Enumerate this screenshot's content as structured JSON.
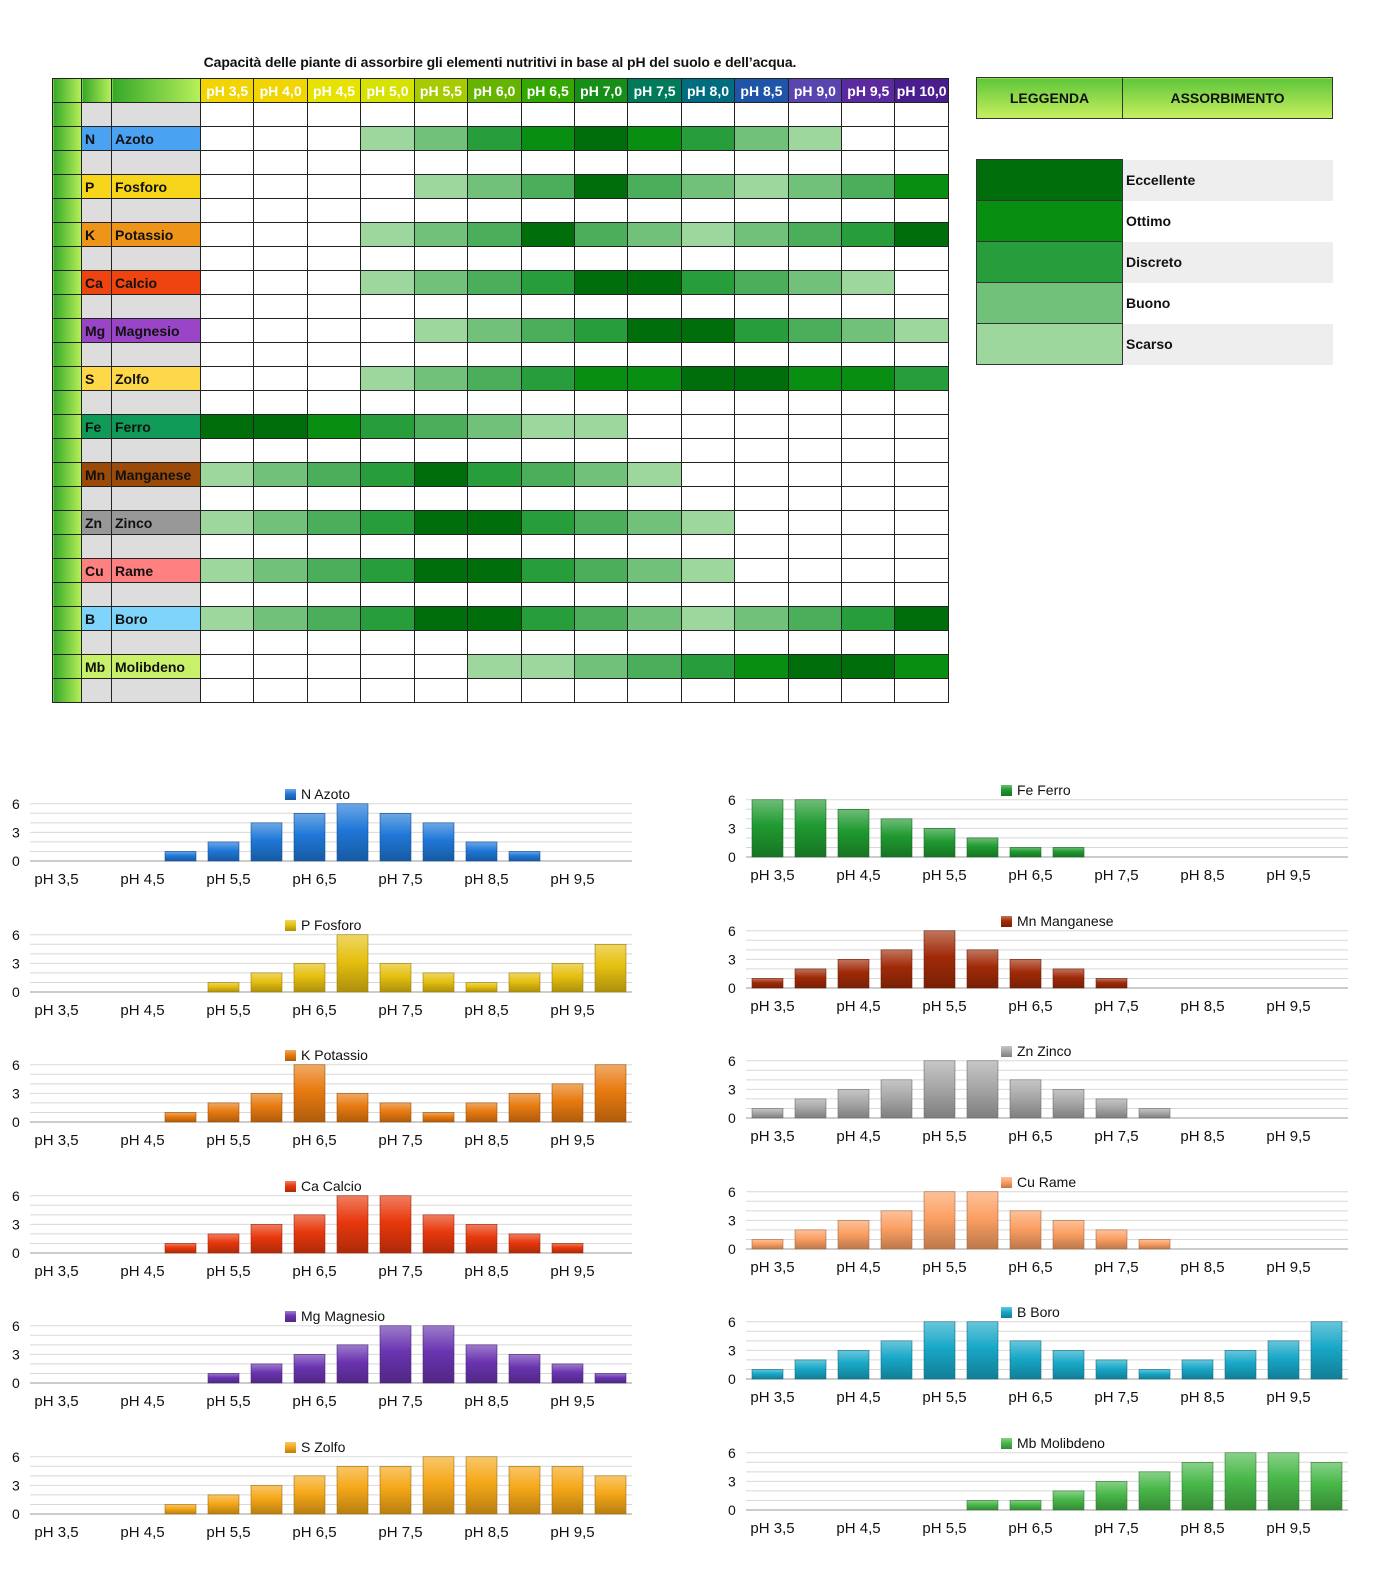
{
  "title": "Capacità delle piante di assorbire gli elementi nutritivi in base al pH del suolo e dell’acqua.",
  "ph_headers": [
    "pH 3,5",
    "pH 4,0",
    "pH 4,5",
    "pH 5,0",
    "pH 5,5",
    "pH 6,0",
    "pH 6,5",
    "pH 7,0",
    "pH 7,5",
    "pH 8,0",
    "pH 8,5",
    "pH 9,0",
    "pH 9,5",
    "pH 10,0"
  ],
  "ph_header_colors": [
    "#f2d400",
    "#f2d400",
    "#e7e200",
    "#d6e200",
    "#a6cc00",
    "#66b400",
    "#34a800",
    "#168f18",
    "#007a5a",
    "#006c80",
    "#1f55a8",
    "#5a45b0",
    "#5c2aa0",
    "#4a1d8e"
  ],
  "level_colors": {
    "0": "#ffffff",
    "1": "#9dd79d",
    "2": "#71c17a",
    "3": "#4aae5a",
    "4": "#279d3c",
    "5": "#088e10",
    "6": "#006e0b"
  },
  "legend": {
    "header_left": "LEGGENDA",
    "header_right": "ASSORBIMENTO",
    "items": [
      {
        "label": "Eccellente",
        "level": 6
      },
      {
        "label": "Ottimo",
        "level": 5
      },
      {
        "label": "Discreto",
        "level": 4
      },
      {
        "label": "Buono",
        "level": 2
      },
      {
        "label": "Scarso",
        "level": 1
      }
    ]
  },
  "elements": [
    {
      "sym": "N",
      "name": "Azoto",
      "color": "#4aa2f2",
      "values": [
        0,
        0,
        0,
        1,
        2,
        4,
        5,
        6,
        5,
        4,
        2,
        1,
        0,
        0
      ]
    },
    {
      "sym": "P",
      "name": "Fosforo",
      "color": "#f7d51b",
      "values": [
        0,
        0,
        0,
        0,
        1,
        2,
        3,
        6,
        3,
        2,
        1,
        2,
        3,
        5
      ]
    },
    {
      "sym": "K",
      "name": "Potassio",
      "color": "#ee9418",
      "values": [
        0,
        0,
        0,
        1,
        2,
        3,
        6,
        3,
        2,
        1,
        2,
        3,
        4,
        6
      ]
    },
    {
      "sym": "Ca",
      "name": "Calcio",
      "color": "#ef4410",
      "values": [
        0,
        0,
        0,
        1,
        2,
        3,
        4,
        6,
        6,
        4,
        3,
        2,
        1,
        0
      ]
    },
    {
      "sym": "Mg",
      "name": "Magnesio",
      "color": "#9a44c8",
      "values": [
        0,
        0,
        0,
        0,
        1,
        2,
        3,
        4,
        6,
        6,
        4,
        3,
        2,
        1
      ]
    },
    {
      "sym": "S",
      "name": "Zolfo",
      "color": "#ffd84a",
      "values": [
        0,
        0,
        0,
        1,
        2,
        3,
        4,
        5,
        5,
        6,
        6,
        5,
        5,
        4
      ]
    },
    {
      "sym": "Fe",
      "name": "Ferro",
      "color": "#0f9a58",
      "values": [
        6,
        6,
        5,
        4,
        3,
        2,
        1,
        1,
        0,
        0,
        0,
        0,
        0,
        0
      ]
    },
    {
      "sym": "Mn",
      "name": "Manganese",
      "color": "#9b4a08",
      "values": [
        1,
        2,
        3,
        4,
        6,
        4,
        3,
        2,
        1,
        0,
        0,
        0,
        0,
        0
      ]
    },
    {
      "sym": "Zn",
      "name": "Zinco",
      "color": "#989898",
      "values": [
        1,
        2,
        3,
        4,
        6,
        6,
        4,
        3,
        2,
        1,
        0,
        0,
        0,
        0
      ]
    },
    {
      "sym": "Cu",
      "name": "Rame",
      "color": "#ff8080",
      "values": [
        1,
        2,
        3,
        4,
        6,
        6,
        4,
        3,
        2,
        1,
        0,
        0,
        0,
        0
      ]
    },
    {
      "sym": "B",
      "name": "Boro",
      "color": "#7fd4fb",
      "values": [
        1,
        2,
        3,
        4,
        6,
        6,
        4,
        3,
        2,
        1,
        2,
        3,
        4,
        6
      ]
    },
    {
      "sym": "Mb",
      "name": "Molibdeno",
      "color": "#c8f068",
      "values": [
        0,
        0,
        0,
        0,
        0,
        1,
        1,
        2,
        3,
        4,
        5,
        6,
        6,
        5
      ]
    }
  ],
  "chart_data": [
    {
      "type": "bar",
      "series": [
        {
          "name": "N Azoto",
          "values": [
            0,
            0,
            0,
            1,
            2,
            4,
            5,
            6,
            5,
            4,
            2,
            1,
            0,
            0
          ]
        }
      ],
      "categories": [
        "pH 3,5",
        "pH 4,0",
        "pH 4,5",
        "pH 5,0",
        "pH 5,5",
        "pH 6,0",
        "pH 6,5",
        "pH 7,0",
        "pH 7,5",
        "pH 8,0",
        "pH 8,5",
        "pH 9,0",
        "pH 9,5",
        "pH 10,0"
      ],
      "tick_labels": [
        "pH 3,5",
        "pH 4,5",
        "pH 5,5",
        "pH 6,5",
        "pH 7,5",
        "pH 8,5",
        "pH 9,5"
      ],
      "yticks": [
        0,
        3,
        6
      ],
      "ylim": [
        0,
        6.5
      ],
      "color": "#1f78d8",
      "legend_placement": "top-center",
      "grid": true
    },
    {
      "type": "bar",
      "series": [
        {
          "name": "P Fosforo",
          "values": [
            0,
            0,
            0,
            0,
            1,
            2,
            3,
            6,
            3,
            2,
            1,
            2,
            3,
            5
          ]
        }
      ],
      "categories": [
        "pH 3,5",
        "pH 4,0",
        "pH 4,5",
        "pH 5,0",
        "pH 5,5",
        "pH 6,0",
        "pH 6,5",
        "pH 7,0",
        "pH 7,5",
        "pH 8,0",
        "pH 8,5",
        "pH 9,0",
        "pH 9,5",
        "pH 10,0"
      ],
      "tick_labels": [
        "pH 3,5",
        "pH 4,5",
        "pH 5,5",
        "pH 6,5",
        "pH 7,5",
        "pH 8,5",
        "pH 9,5"
      ],
      "yticks": [
        0,
        3,
        6
      ],
      "ylim": [
        0,
        6.5
      ],
      "color": "#e6c010",
      "legend_placement": "top-center",
      "grid": true
    },
    {
      "type": "bar",
      "series": [
        {
          "name": "K Potassio",
          "values": [
            0,
            0,
            0,
            1,
            2,
            3,
            6,
            3,
            2,
            1,
            2,
            3,
            4,
            6
          ]
        }
      ],
      "categories": [
        "pH 3,5",
        "pH 4,0",
        "pH 4,5",
        "pH 5,0",
        "pH 5,5",
        "pH 6,0",
        "pH 6,5",
        "pH 7,0",
        "pH 7,5",
        "pH 8,0",
        "pH 8,5",
        "pH 9,0",
        "pH 9,5",
        "pH 10,0"
      ],
      "tick_labels": [
        "pH 3,5",
        "pH 4,5",
        "pH 5,5",
        "pH 6,5",
        "pH 7,5",
        "pH 8,5",
        "pH 9,5"
      ],
      "yticks": [
        0,
        3,
        6
      ],
      "ylim": [
        0,
        6.5
      ],
      "color": "#e87a10",
      "legend_placement": "top-center",
      "grid": true
    },
    {
      "type": "bar",
      "series": [
        {
          "name": "Ca Calcio",
          "values": [
            0,
            0,
            0,
            1,
            2,
            3,
            4,
            6,
            6,
            4,
            3,
            2,
            1,
            0
          ]
        }
      ],
      "categories": [
        "pH 3,5",
        "pH 4,0",
        "pH 4,5",
        "pH 5,0",
        "pH 5,5",
        "pH 6,0",
        "pH 6,5",
        "pH 7,0",
        "pH 7,5",
        "pH 8,0",
        "pH 8,5",
        "pH 9,0",
        "pH 9,5",
        "pH 10,0"
      ],
      "tick_labels": [
        "pH 3,5",
        "pH 4,5",
        "pH 5,5",
        "pH 6,5",
        "pH 7,5",
        "pH 8,5",
        "pH 9,5"
      ],
      "yticks": [
        0,
        3,
        6
      ],
      "ylim": [
        0,
        6.5
      ],
      "color": "#e8380c",
      "legend_placement": "top-center",
      "grid": true
    },
    {
      "type": "bar",
      "series": [
        {
          "name": "Mg Magnesio",
          "values": [
            0,
            0,
            0,
            0,
            1,
            2,
            3,
            4,
            6,
            6,
            4,
            3,
            2,
            1
          ]
        }
      ],
      "categories": [
        "pH 3,5",
        "pH 4,0",
        "pH 4,5",
        "pH 5,0",
        "pH 5,5",
        "pH 6,0",
        "pH 6,5",
        "pH 7,0",
        "pH 7,5",
        "pH 8,0",
        "pH 8,5",
        "pH 9,0",
        "pH 9,5",
        "pH 10,0"
      ],
      "tick_labels": [
        "pH 3,5",
        "pH 4,5",
        "pH 5,5",
        "pH 6,5",
        "pH 7,5",
        "pH 8,5",
        "pH 9,5"
      ],
      "yticks": [
        0,
        3,
        6
      ],
      "ylim": [
        0,
        6.5
      ],
      "color": "#6a34b0",
      "legend_placement": "top-center",
      "grid": true
    },
    {
      "type": "bar",
      "series": [
        {
          "name": "S Zolfo",
          "values": [
            0,
            0,
            0,
            1,
            2,
            3,
            4,
            5,
            5,
            6,
            6,
            5,
            5,
            4
          ]
        }
      ],
      "categories": [
        "pH 3,5",
        "pH 4,0",
        "pH 4,5",
        "pH 5,0",
        "pH 5,5",
        "pH 6,0",
        "pH 6,5",
        "pH 7,0",
        "pH 7,5",
        "pH 8,0",
        "pH 8,5",
        "pH 9,0",
        "pH 9,5",
        "pH 10,0"
      ],
      "tick_labels": [
        "pH 3,5",
        "pH 4,5",
        "pH 5,5",
        "pH 6,5",
        "pH 7,5",
        "pH 8,5",
        "pH 9,5"
      ],
      "yticks": [
        0,
        3,
        6
      ],
      "ylim": [
        0,
        6.5
      ],
      "color": "#f5a818",
      "legend_placement": "top-center",
      "grid": true
    },
    {
      "type": "bar",
      "series": [
        {
          "name": "Fe Ferro",
          "values": [
            6,
            6,
            5,
            4,
            3,
            2,
            1,
            1,
            0,
            0,
            0,
            0,
            0,
            0
          ]
        }
      ],
      "categories": [
        "pH 3,5",
        "pH 4,0",
        "pH 4,5",
        "pH 5,0",
        "pH 5,5",
        "pH 6,0",
        "pH 6,5",
        "pH 7,0",
        "pH 7,5",
        "pH 8,0",
        "pH 8,5",
        "pH 9,0",
        "pH 9,5",
        "pH 10,0"
      ],
      "tick_labels": [
        "pH 3,5",
        "pH 4,5",
        "pH 5,5",
        "pH 6,5",
        "pH 7,5",
        "pH 8,5",
        "pH 9,5"
      ],
      "yticks": [
        0,
        3,
        6
      ],
      "ylim": [
        0,
        6.5
      ],
      "color": "#1f9a30",
      "legend_placement": "top-center",
      "grid": true
    },
    {
      "type": "bar",
      "series": [
        {
          "name": "Mn Manganese",
          "values": [
            1,
            2,
            3,
            4,
            6,
            4,
            3,
            2,
            1,
            0,
            0,
            0,
            0,
            0
          ]
        }
      ],
      "categories": [
        "pH 3,5",
        "pH 4,0",
        "pH 4,5",
        "pH 5,0",
        "pH 5,5",
        "pH 6,0",
        "pH 6,5",
        "pH 7,0",
        "pH 7,5",
        "pH 8,0",
        "pH 8,5",
        "pH 9,0",
        "pH 9,5",
        "pH 10,0"
      ],
      "tick_labels": [
        "pH 3,5",
        "pH 4,5",
        "pH 5,5",
        "pH 6,5",
        "pH 7,5",
        "pH 8,5",
        "pH 9,5"
      ],
      "yticks": [
        0,
        3,
        6
      ],
      "ylim": [
        0,
        6.5
      ],
      "color": "#a02a08",
      "legend_placement": "top-center",
      "grid": true
    },
    {
      "type": "bar",
      "series": [
        {
          "name": "Zn Zinco",
          "values": [
            1,
            2,
            3,
            4,
            6,
            6,
            4,
            3,
            2,
            1,
            0,
            0,
            0,
            0
          ]
        }
      ],
      "categories": [
        "pH 3,5",
        "pH 4,0",
        "pH 4,5",
        "pH 5,0",
        "pH 5,5",
        "pH 6,0",
        "pH 6,5",
        "pH 7,0",
        "pH 7,5",
        "pH 8,0",
        "pH 8,5",
        "pH 9,0",
        "pH 9,5",
        "pH 10,0"
      ],
      "tick_labels": [
        "pH 3,5",
        "pH 4,5",
        "pH 5,5",
        "pH 6,5",
        "pH 7,5",
        "pH 8,5",
        "pH 9,5"
      ],
      "yticks": [
        0,
        3,
        6
      ],
      "ylim": [
        0,
        6.5
      ],
      "color": "#a8a8a8",
      "legend_placement": "top-center",
      "grid": true
    },
    {
      "type": "bar",
      "series": [
        {
          "name": "Cu Rame",
          "values": [
            1,
            2,
            3,
            4,
            6,
            6,
            4,
            3,
            2,
            1,
            0,
            0,
            0,
            0
          ]
        }
      ],
      "categories": [
        "pH 3,5",
        "pH 4,0",
        "pH 4,5",
        "pH 5,0",
        "pH 5,5",
        "pH 6,0",
        "pH 6,5",
        "pH 7,0",
        "pH 7,5",
        "pH 8,0",
        "pH 8,5",
        "pH 9,0",
        "pH 9,5",
        "pH 10,0"
      ],
      "tick_labels": [
        "pH 3,5",
        "pH 4,5",
        "pH 5,5",
        "pH 6,5",
        "pH 7,5",
        "pH 8,5",
        "pH 9,5"
      ],
      "yticks": [
        0,
        3,
        6
      ],
      "ylim": [
        0,
        6.5
      ],
      "color": "#fca064",
      "legend_placement": "top-center",
      "grid": true
    },
    {
      "type": "bar",
      "series": [
        {
          "name": "B Boro",
          "values": [
            1,
            2,
            3,
            4,
            6,
            6,
            4,
            3,
            2,
            1,
            2,
            3,
            4,
            6
          ]
        }
      ],
      "categories": [
        "pH 3,5",
        "pH 4,0",
        "pH 4,5",
        "pH 5,0",
        "pH 5,5",
        "pH 6,0",
        "pH 6,5",
        "pH 7,0",
        "pH 7,5",
        "pH 8,0",
        "pH 8,5",
        "pH 9,0",
        "pH 9,5",
        "pH 10,0"
      ],
      "tick_labels": [
        "pH 3,5",
        "pH 4,5",
        "pH 5,5",
        "pH 6,5",
        "pH 7,5",
        "pH 8,5",
        "pH 9,5"
      ],
      "yticks": [
        0,
        3,
        6
      ],
      "ylim": [
        0,
        6.5
      ],
      "color": "#18a8c8",
      "legend_placement": "top-center",
      "grid": true
    },
    {
      "type": "bar",
      "series": [
        {
          "name": "Mb Molibdeno",
          "values": [
            0,
            0,
            0,
            0,
            0,
            1,
            1,
            2,
            3,
            4,
            5,
            6,
            6,
            5
          ]
        }
      ],
      "categories": [
        "pH 3,5",
        "pH 4,0",
        "pH 4,5",
        "pH 5,0",
        "pH 5,5",
        "pH 6,0",
        "pH 6,5",
        "pH 7,0",
        "pH 7,5",
        "pH 8,0",
        "pH 8,5",
        "pH 9,0",
        "pH 9,5",
        "pH 10,0"
      ],
      "tick_labels": [
        "pH 3,5",
        "pH 4,5",
        "pH 5,5",
        "pH 6,5",
        "pH 7,5",
        "pH 8,5",
        "pH 9,5"
      ],
      "yticks": [
        0,
        3,
        6
      ],
      "ylim": [
        0,
        6.5
      ],
      "color": "#48b848",
      "legend_placement": "top-center",
      "grid": true
    }
  ]
}
